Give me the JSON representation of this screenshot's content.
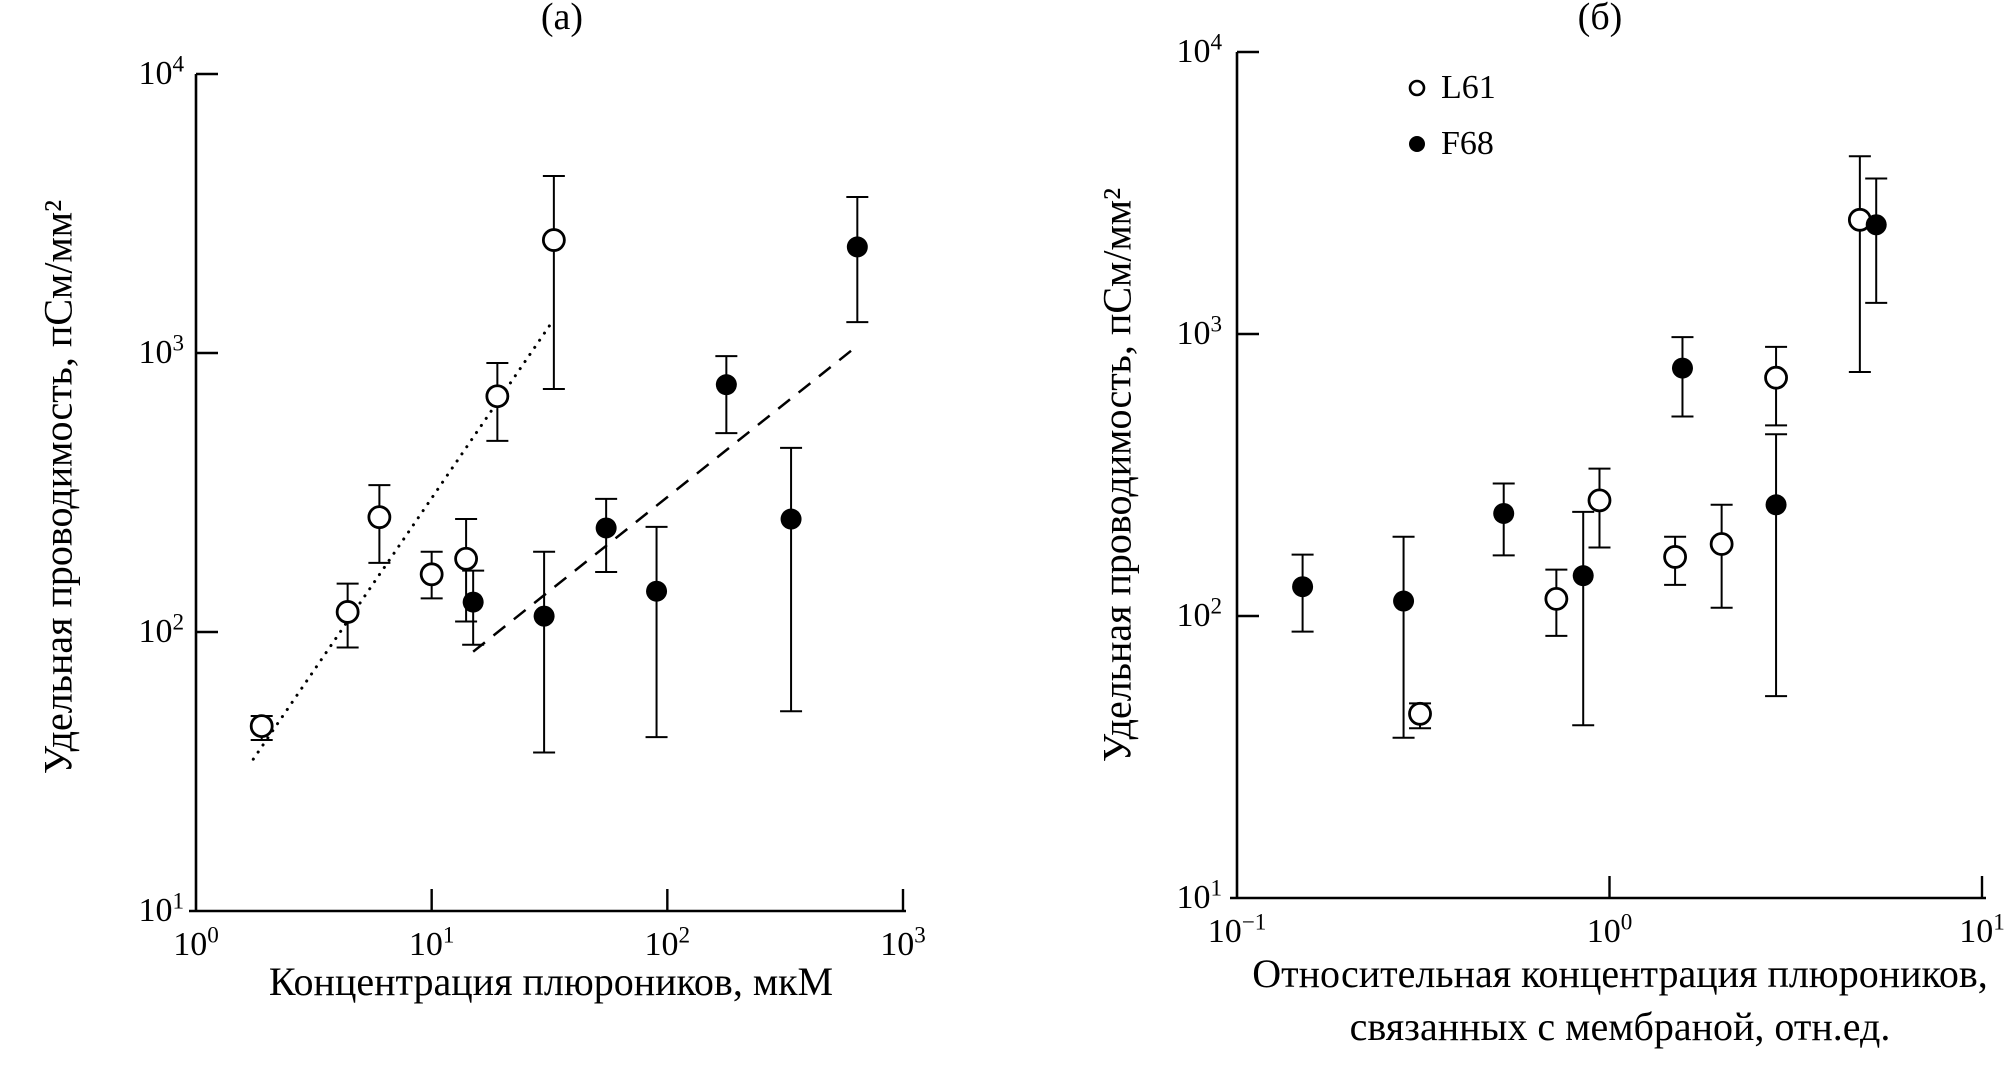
{
  "figure": {
    "background_color": "#ffffff",
    "foreground_color": "#000000",
    "marker_legend": [
      "open-circle = L61",
      "filled-circle = F68"
    ]
  },
  "chart_data": [
    {
      "id": "a",
      "type": "scatter",
      "title": "(а)",
      "xlabel": "Концентрация плюроников, мкМ",
      "ylabel": "Удельная проводимость, пСм/мм²",
      "x_scale": "log",
      "y_scale": "log",
      "xlim": [
        1,
        1000
      ],
      "ylim": [
        10,
        10000
      ],
      "x_tick_exps": [
        0,
        1,
        2,
        3
      ],
      "y_tick_exps": [
        1,
        2,
        3,
        4
      ],
      "grid": false,
      "series": [
        {
          "name": "L61",
          "marker": "open-circle",
          "points": [
            {
              "x": 1.9,
              "y": 46,
              "ylo": 41,
              "yhi": 50
            },
            {
              "x": 4.4,
              "y": 118,
              "ylo": 88,
              "yhi": 149
            },
            {
              "x": 6.0,
              "y": 258,
              "ylo": 177,
              "yhi": 336
            },
            {
              "x": 10,
              "y": 161,
              "ylo": 132,
              "yhi": 194
            },
            {
              "x": 14,
              "y": 183,
              "ylo": 109,
              "yhi": 254
            },
            {
              "x": 19,
              "y": 700,
              "ylo": 484,
              "yhi": 921
            },
            {
              "x": 33,
              "y": 2540,
              "ylo": 743,
              "yhi": 4310
            }
          ]
        },
        {
          "name": "F68",
          "marker": "filled-circle",
          "points": [
            {
              "x": 15,
              "y": 128,
              "ylo": 90,
              "yhi": 166
            },
            {
              "x": 30,
              "y": 114,
              "ylo": 37,
              "yhi": 194
            },
            {
              "x": 55,
              "y": 236,
              "ylo": 164,
              "yhi": 300
            },
            {
              "x": 90,
              "y": 140,
              "ylo": 42,
              "yhi": 238
            },
            {
              "x": 178,
              "y": 770,
              "ylo": 516,
              "yhi": 975
            },
            {
              "x": 335,
              "y": 254,
              "ylo": 52,
              "yhi": 457
            },
            {
              "x": 640,
              "y": 2400,
              "ylo": 1290,
              "yhi": 3625
            }
          ]
        }
      ],
      "fit_lines": [
        {
          "series": "L61",
          "style": "dotted",
          "x1": 1.75,
          "y1": 35,
          "x2": 33,
          "y2": 1320
        },
        {
          "series": "F68",
          "style": "dashed",
          "x1": 15,
          "y1": 85,
          "x2": 630,
          "y2": 1050
        }
      ]
    },
    {
      "id": "b",
      "type": "scatter",
      "title": "(б)",
      "xlabel_lines": [
        "Относительная концентрация плюроников,",
        "связанных с мембраной, отн.ед."
      ],
      "ylabel": "Удельная проводимость, пСм/мм²",
      "x_scale": "log",
      "y_scale": "log",
      "xlim": [
        0.1,
        10
      ],
      "ylim": [
        10,
        10000
      ],
      "x_tick_exps": [
        -1,
        0,
        1
      ],
      "y_tick_exps": [
        1,
        2,
        3,
        4
      ],
      "grid": false,
      "legend": {
        "position": "inside-top-center",
        "entries": [
          {
            "marker": "open-circle",
            "label": "L61"
          },
          {
            "marker": "filled-circle",
            "label": "F68"
          }
        ]
      },
      "series": [
        {
          "name": "L61",
          "marker": "open-circle",
          "points": [
            {
              "x": 0.31,
              "y": 45,
              "ylo": 40,
              "yhi": 49
            },
            {
              "x": 0.72,
              "y": 115,
              "ylo": 85,
              "yhi": 146
            },
            {
              "x": 0.94,
              "y": 257,
              "ylo": 175,
              "yhi": 333
            },
            {
              "x": 1.5,
              "y": 162,
              "ylo": 129,
              "yhi": 191
            },
            {
              "x": 2.0,
              "y": 180,
              "ylo": 107,
              "yhi": 248
            },
            {
              "x": 2.8,
              "y": 700,
              "ylo": 474,
              "yhi": 900
            },
            {
              "x": 4.7,
              "y": 2540,
              "ylo": 733,
              "yhi": 4270
            }
          ]
        },
        {
          "name": "F68",
          "marker": "filled-circle",
          "points": [
            {
              "x": 0.15,
              "y": 127,
              "ylo": 88,
              "yhi": 165
            },
            {
              "x": 0.28,
              "y": 113,
              "ylo": 37,
              "yhi": 191
            },
            {
              "x": 0.52,
              "y": 231,
              "ylo": 164,
              "yhi": 295
            },
            {
              "x": 0.85,
              "y": 139,
              "ylo": 41,
              "yhi": 234
            },
            {
              "x": 1.57,
              "y": 757,
              "ylo": 510,
              "yhi": 975
            },
            {
              "x": 2.8,
              "y": 248,
              "ylo": 52,
              "yhi": 441
            },
            {
              "x": 5.2,
              "y": 2440,
              "ylo": 1290,
              "yhi": 3560
            }
          ]
        }
      ],
      "fit_lines": []
    }
  ]
}
